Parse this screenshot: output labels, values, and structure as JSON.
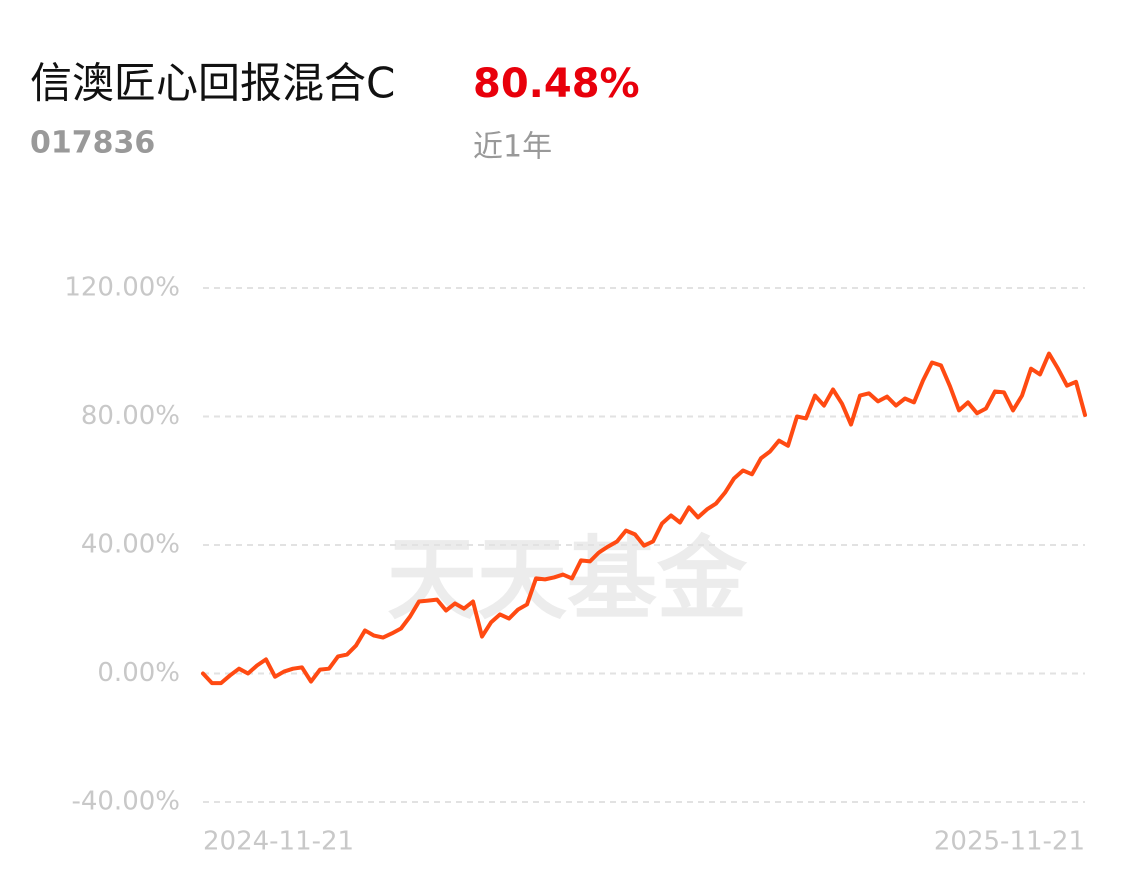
{
  "header": {
    "title": "信澳匠心回报混合C",
    "return": "80.48%",
    "code": "017836",
    "period": "近1年"
  },
  "chart_data": {
    "type": "line",
    "watermark": "天天基金",
    "categories": [
      "2024-11-21",
      null,
      null,
      null,
      null,
      null,
      null,
      null,
      null,
      null,
      null,
      null,
      null,
      null,
      null,
      null,
      null,
      null,
      null,
      null,
      null,
      null,
      null,
      null,
      null,
      null,
      null,
      null,
      null,
      null,
      null,
      null,
      null,
      null,
      null,
      null,
      null,
      null,
      null,
      null,
      null,
      null,
      null,
      null,
      null,
      null,
      null,
      null,
      null,
      null,
      null,
      null,
      null,
      null,
      null,
      null,
      null,
      null,
      null,
      null,
      null,
      null,
      null,
      null,
      null,
      null,
      null,
      null,
      null,
      null,
      null,
      null,
      null,
      null,
      null,
      null,
      null,
      null,
      null,
      null,
      null,
      null,
      null,
      null,
      null,
      null,
      null,
      null,
      null,
      null,
      null,
      null,
      null,
      null,
      null,
      null,
      null,
      null,
      "2025-11-21"
    ],
    "values": [
      0,
      -3,
      -3,
      -0.6,
      1.5,
      0,
      2.5,
      4.4,
      -1,
      0.6,
      1.5,
      1.9,
      -2.5,
      1.2,
      1.5,
      5.3,
      5.9,
      8.7,
      13.4,
      11.8,
      11.2,
      12.5,
      14,
      17.7,
      22.4,
      22.7,
      23,
      19.6,
      21.8,
      20.2,
      22.4,
      11.5,
      15.9,
      18.4,
      17.1,
      19.9,
      21.5,
      29.6,
      29.3,
      29.9,
      30.8,
      29.6,
      35.2,
      34.9,
      37.7,
      39.5,
      41.1,
      44.5,
      43.3,
      39.8,
      41.1,
      46.7,
      49.2,
      47,
      51.7,
      48.6,
      51.1,
      52.9,
      56.3,
      60.7,
      63.2,
      62,
      67,
      69.1,
      72.5,
      70.9,
      80,
      79.4,
      86.5,
      83.4,
      88.4,
      84,
      77.5,
      86.5,
      87.2,
      84.7,
      86.2,
      83.4,
      85.6,
      84.4,
      91.2,
      96.8,
      95.9,
      89.4,
      81.9,
      84.4,
      81,
      82.5,
      87.8,
      87.5,
      81.9,
      86.5,
      94.9,
      93.1,
      99.6,
      94.9,
      89.6,
      90.8,
      80.48
    ],
    "color": "#ff4a12",
    "ylim": [
      -40,
      120
    ],
    "yticks": [
      {
        "value": -40,
        "label": "-40.00%"
      },
      {
        "value": 0,
        "label": "0.00%"
      },
      {
        "value": 40,
        "label": "40.00%"
      },
      {
        "value": 80,
        "label": "80.00%"
      },
      {
        "value": 120,
        "label": "120.00%"
      }
    ],
    "grid": true
  }
}
